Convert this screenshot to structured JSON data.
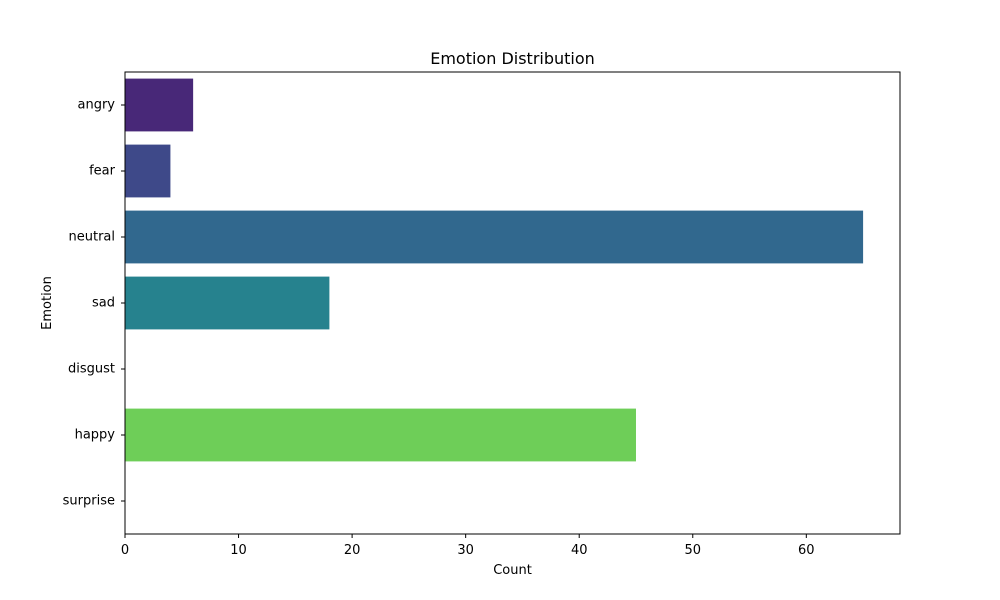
{
  "chart_data": {
    "type": "bar",
    "orientation": "horizontal",
    "title": "Emotion Distribution",
    "xlabel": "Count",
    "ylabel": "Emotion",
    "categories": [
      "angry",
      "fear",
      "neutral",
      "sad",
      "disgust",
      "happy",
      "surprise"
    ],
    "values": [
      6,
      4,
      65,
      18,
      0,
      45,
      0
    ],
    "colors": [
      "#482878",
      "#3e4989",
      "#31688e",
      "#26828e",
      "#1f9e89",
      "#6ece58",
      "#b5de2b"
    ],
    "xlim": [
      0,
      68.25
    ],
    "xticks": [
      0,
      10,
      20,
      30,
      40,
      50,
      60
    ],
    "grid": false,
    "legend": "none"
  }
}
